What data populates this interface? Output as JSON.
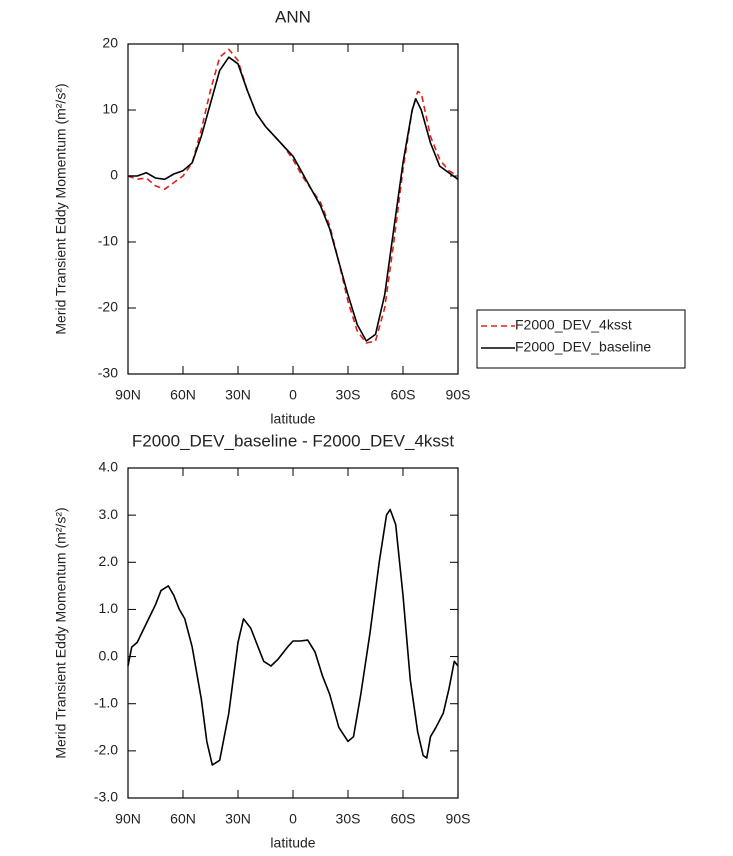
{
  "chart_data": [
    {
      "type": "line",
      "title": "ANN",
      "x_label": "latitude",
      "y_label": "Merid Transient Eddy Momentum (m²/s²)",
      "xlim": [
        90,
        -90
      ],
      "xticks": [
        {
          "value": 90,
          "label": "90N"
        },
        {
          "value": 60,
          "label": "60N"
        },
        {
          "value": 30,
          "label": "30N"
        },
        0,
        {
          "value": -30,
          "label": "30S"
        },
        {
          "value": -60,
          "label": "60S"
        },
        {
          "value": -90,
          "label": "90S"
        }
      ],
      "ylim": [
        -30,
        20
      ],
      "yticks": [
        -30,
        -20,
        -10,
        0,
        10,
        20
      ],
      "legend": "right",
      "series": [
        {
          "name": "F2000_DEV_4ksst",
          "color": "#e0201b",
          "dash": true,
          "x": [
            90,
            85,
            80,
            75,
            70,
            65,
            60,
            55,
            50,
            45,
            40,
            35,
            30,
            25,
            20,
            15,
            10,
            5,
            0,
            -5,
            -10,
            -15,
            -20,
            -25,
            -30,
            -35,
            -40,
            -45,
            -50,
            -55,
            -60,
            -65,
            -68,
            -70,
            -75,
            -80,
            -85,
            -90
          ],
          "values": [
            0,
            -0.5,
            -0.3,
            -1.5,
            -2,
            -1,
            0,
            2,
            7,
            13,
            18,
            19.2,
            17.5,
            13,
            9.5,
            7.5,
            6,
            4.5,
            2.5,
            0,
            -2,
            -4,
            -7.5,
            -13,
            -19,
            -23.5,
            -25.3,
            -25,
            -20,
            -10,
            1,
            10,
            12.8,
            12.5,
            6,
            2.5,
            0.8,
            0
          ]
        },
        {
          "name": "F2000_DEV_baseline",
          "color": "#000000",
          "dash": false,
          "x": [
            90,
            85,
            80,
            75,
            70,
            65,
            60,
            55,
            50,
            45,
            40,
            35,
            30,
            25,
            20,
            15,
            10,
            5,
            0,
            -5,
            -10,
            -15,
            -20,
            -25,
            -30,
            -35,
            -40,
            -45,
            -50,
            -55,
            -60,
            -65,
            -67,
            -70,
            -75,
            -80,
            -85,
            -90
          ],
          "values": [
            0,
            0,
            0.5,
            -0.3,
            -0.5,
            0.3,
            0.8,
            2,
            6,
            11,
            16,
            18,
            17,
            13,
            9.5,
            7.5,
            6,
            4.5,
            3,
            0.5,
            -2,
            -4.5,
            -8,
            -13,
            -18,
            -22.5,
            -25,
            -24,
            -18,
            -8,
            2,
            10,
            11.7,
            10,
            5,
            1.5,
            0.5,
            -0.5
          ]
        }
      ]
    },
    {
      "type": "line",
      "title": "F2000_DEV_baseline - F2000_DEV_4ksst",
      "x_label": "latitude",
      "y_label": "Merid Transient Eddy Momentum (m²/s²)",
      "xlim": [
        90,
        -90
      ],
      "xticks": [
        {
          "value": 90,
          "label": "90N"
        },
        {
          "value": 60,
          "label": "60N"
        },
        {
          "value": 30,
          "label": "30N"
        },
        0,
        {
          "value": -30,
          "label": "30S"
        },
        {
          "value": -60,
          "label": "60S"
        },
        {
          "value": -90,
          "label": "90S"
        }
      ],
      "ylim": [
        -3,
        4
      ],
      "yticks": [
        {
          "value": -3,
          "label": "-3.0"
        },
        {
          "value": -2,
          "label": "-2.0"
        },
        {
          "value": -1,
          "label": "-1.0"
        },
        {
          "value": 0,
          "label": "0.0"
        },
        {
          "value": 1,
          "label": "1.0"
        },
        {
          "value": 2,
          "label": "2.0"
        },
        {
          "value": 3,
          "label": "3.0"
        },
        {
          "value": 4,
          "label": "4.0"
        }
      ],
      "series": [
        {
          "color": "#000000",
          "dash": false,
          "x": [
            90,
            88,
            85,
            80,
            75,
            72,
            68,
            65,
            62,
            59,
            55,
            50,
            47,
            44,
            40,
            35,
            30,
            27,
            23,
            20,
            16,
            12,
            8,
            3,
            0,
            -4,
            -8,
            -12,
            -16,
            -20,
            -25,
            -30,
            -33,
            -37,
            -42,
            -47,
            -51,
            -53,
            -56,
            -60,
            -64,
            -68,
            -71,
            -73,
            -75,
            -78,
            -82,
            -85,
            -88,
            -90
          ],
          "values": [
            -0.2,
            0.2,
            0.3,
            0.7,
            1.1,
            1.4,
            1.5,
            1.3,
            1.0,
            0.8,
            0.2,
            -0.9,
            -1.8,
            -2.3,
            -2.2,
            -1.2,
            0.3,
            0.8,
            0.6,
            0.3,
            -0.1,
            -0.2,
            -0.05,
            0.2,
            0.33,
            0.33,
            0.35,
            0.1,
            -0.4,
            -0.8,
            -1.5,
            -1.8,
            -1.7,
            -0.8,
            0.5,
            2.0,
            3.0,
            3.12,
            2.8,
            1.3,
            -0.5,
            -1.6,
            -2.1,
            -2.15,
            -1.7,
            -1.5,
            -1.2,
            -0.7,
            -0.1,
            -0.2
          ]
        }
      ]
    }
  ]
}
